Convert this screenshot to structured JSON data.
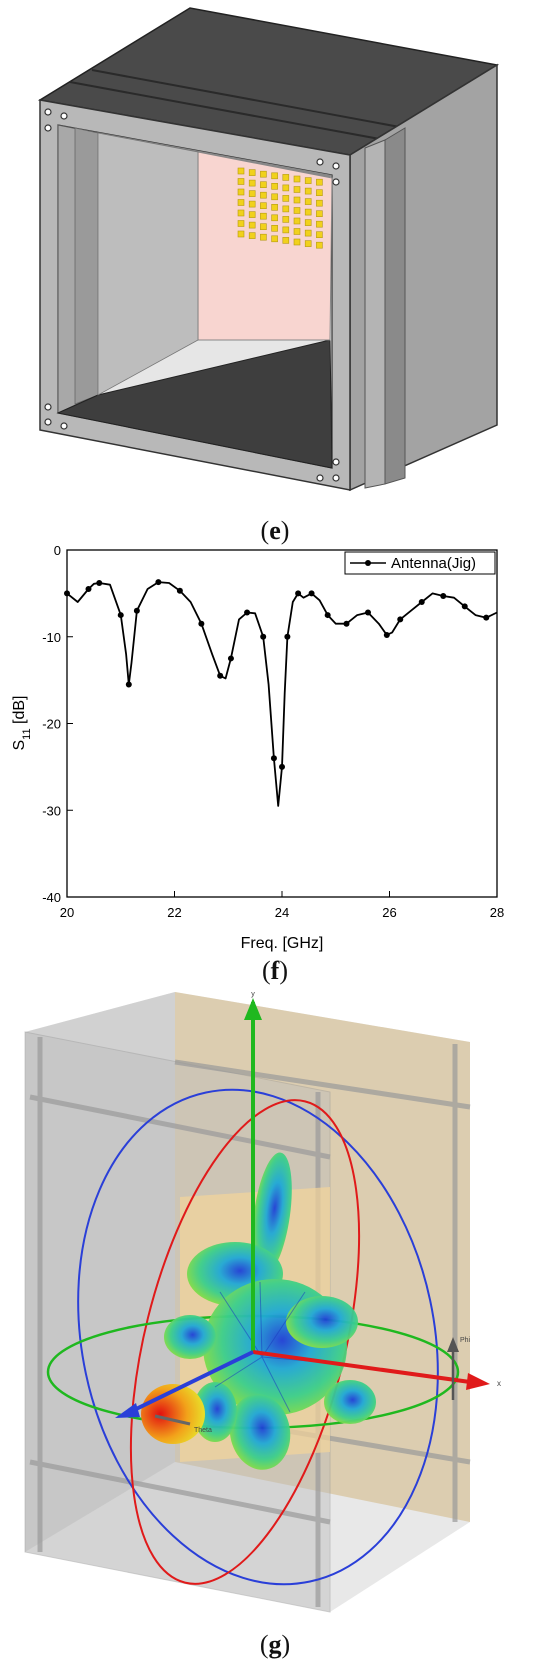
{
  "panels": {
    "e": {
      "caption_open": "(",
      "caption_letter": "e",
      "caption_close": ")"
    },
    "f": {
      "caption_open": "(",
      "caption_letter": "f",
      "caption_close": ")"
    },
    "g": {
      "caption_open": "(",
      "caption_letter": "g",
      "caption_close": ")"
    }
  },
  "plot": {
    "axis_x_small": "x",
    "axis_y_small": "y",
    "axis_phi_small": "Phi",
    "axis_theta_small": "Theta"
  },
  "chart_data": {
    "type": "line",
    "title": "",
    "xlabel": "Freq. [GHz]",
    "ylabel_main": "S",
    "ylabel_sub": "11",
    "ylabel_unit": " [dB]",
    "xlim": [
      20,
      28
    ],
    "ylim": [
      -40,
      0
    ],
    "xticks": [
      "20",
      "22",
      "24",
      "26",
      "28"
    ],
    "yticks": [
      "0",
      "-10",
      "-20",
      "-30",
      "-40"
    ],
    "legend_position": "top-right",
    "grid": false,
    "series": [
      {
        "name": "Antenna(Jig)",
        "color": "#000000",
        "x": [
          20.0,
          20.2,
          20.4,
          20.5,
          20.6,
          20.8,
          21.0,
          21.1,
          21.15,
          21.2,
          21.3,
          21.5,
          21.7,
          21.9,
          22.1,
          22.3,
          22.5,
          22.7,
          22.85,
          22.95,
          23.05,
          23.2,
          23.35,
          23.5,
          23.65,
          23.75,
          23.85,
          23.93,
          24.0,
          24.05,
          24.1,
          24.2,
          24.3,
          24.4,
          24.55,
          24.7,
          24.85,
          25.0,
          25.2,
          25.4,
          25.6,
          25.8,
          25.95,
          26.05,
          26.2,
          26.4,
          26.6,
          26.8,
          27.0,
          27.2,
          27.4,
          27.6,
          27.8,
          28.0
        ],
        "y": [
          -5.0,
          -6.0,
          -4.5,
          -3.9,
          -3.8,
          -4.0,
          -7.5,
          -12.0,
          -15.5,
          -13.0,
          -7.0,
          -4.5,
          -3.7,
          -3.8,
          -4.7,
          -6.0,
          -8.5,
          -12.0,
          -14.5,
          -14.8,
          -12.5,
          -8.0,
          -7.2,
          -7.3,
          -10.0,
          -15.5,
          -24.0,
          -29.5,
          -25.0,
          -16.5,
          -10.0,
          -6.0,
          -5.0,
          -5.5,
          -5.0,
          -5.8,
          -7.5,
          -8.5,
          -8.5,
          -7.5,
          -7.2,
          -8.5,
          -9.8,
          -9.5,
          -8.0,
          -7.0,
          -6.0,
          -5.0,
          -5.3,
          -5.5,
          -6.5,
          -7.5,
          -7.8,
          -7.2
        ]
      }
    ]
  }
}
